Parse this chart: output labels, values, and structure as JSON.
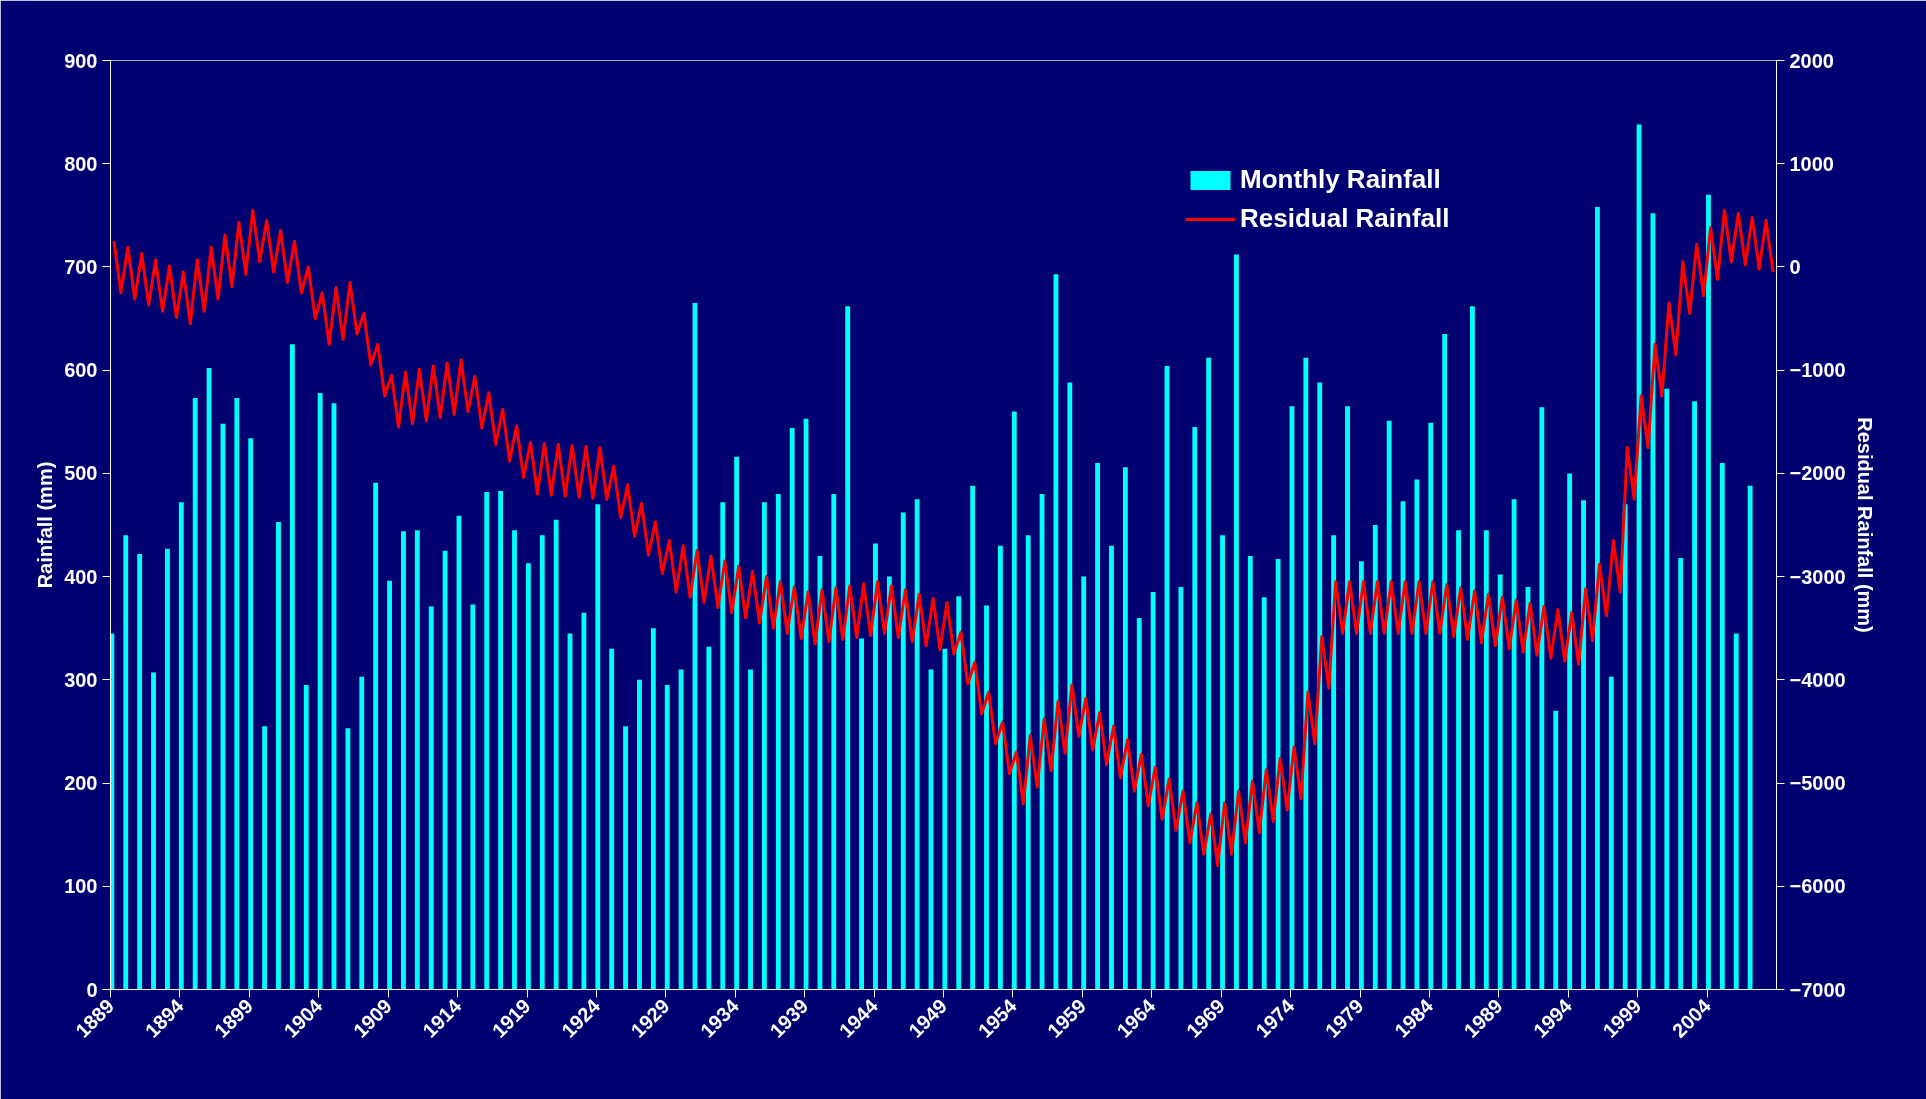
{
  "chart_data": {
    "type": "bar",
    "ylabel": "Rainfall (mm)",
    "y2label": "Residual Rainfall (mm)",
    "xlim": [
      1889,
      2009
    ],
    "xticks": [
      1889,
      1894,
      1899,
      1904,
      1909,
      1914,
      1919,
      1924,
      1929,
      1934,
      1939,
      1944,
      1949,
      1954,
      1959,
      1964,
      1969,
      1974,
      1979,
      1984,
      1989,
      1994,
      1999,
      2004
    ],
    "ylim": [
      0,
      900
    ],
    "yticks": [
      0,
      100,
      200,
      300,
      400,
      500,
      600,
      700,
      800,
      900
    ],
    "y2lim": [
      -7000,
      2000
    ],
    "y2ticks": [
      -7000,
      -6000,
      -5000,
      -4000,
      -3000,
      -2000,
      -1000,
      0,
      1000,
      2000
    ],
    "grid": false,
    "legend": "top right",
    "series": [
      {
        "name": "Monthly Rainfall",
        "color": "#00ffff",
        "x": [
          1889.1,
          1890.1,
          1891.1,
          1892.1,
          1893.1,
          1894.1,
          1895.1,
          1896.1,
          1897.1,
          1898.1,
          1899.1,
          1900.1,
          1901.1,
          1902.1,
          1903.1,
          1904.1,
          1905.1,
          1906.1,
          1907.1,
          1908.1,
          1909.1,
          1910.1,
          1911.1,
          1912.1,
          1913.1,
          1914.1,
          1915.1,
          1916.1,
          1917.1,
          1918.1,
          1919.1,
          1920.1,
          1921.1,
          1922.1,
          1923.1,
          1924.1,
          1925.1,
          1926.1,
          1927.1,
          1928.1,
          1929.1,
          1930.1,
          1931.1,
          1932.1,
          1933.1,
          1934.1,
          1935.1,
          1936.1,
          1937.1,
          1938.1,
          1939.1,
          1940.1,
          1941.1,
          1942.1,
          1943.1,
          1944.1,
          1945.1,
          1946.1,
          1947.1,
          1948.1,
          1949.1,
          1950.1,
          1951.1,
          1952.1,
          1953.1,
          1954.1,
          1955.1,
          1956.1,
          1957.1,
          1958.1,
          1959.1,
          1960.1,
          1961.1,
          1962.1,
          1963.1,
          1964.1,
          1965.1,
          1966.1,
          1967.1,
          1968.1,
          1969.1,
          1970.1,
          1971.1,
          1972.1,
          1973.1,
          1974.1,
          1975.1,
          1976.1,
          1977.1,
          1978.1,
          1979.1,
          1980.1,
          1981.1,
          1982.1,
          1983.1,
          1984.1,
          1985.1,
          1986.1,
          1987.1,
          1988.1,
          1989.1,
          1990.1,
          1991.1,
          1992.1,
          1993.1,
          1994.1,
          1995.1,
          1996.1,
          1997.1,
          1998.1,
          1999.1,
          2000.1,
          2001.1,
          2002.1,
          2003.1,
          2004.1,
          2005.1,
          2006.1,
          2007.1
        ],
        "values": [
          345,
          440,
          422,
          307,
          427,
          472,
          573,
          602,
          548,
          573,
          534,
          255,
          453,
          625,
          295,
          578,
          568,
          253,
          303,
          491,
          396,
          444,
          445,
          371,
          425,
          459,
          373,
          482,
          483,
          445,
          413,
          440,
          455,
          345,
          365,
          470,
          330,
          255,
          300,
          350,
          295,
          310,
          665,
          332,
          472,
          516,
          310,
          472,
          480,
          544,
          553,
          420,
          480,
          662,
          340,
          432,
          400,
          462,
          475,
          310,
          330,
          381,
          488,
          372,
          430,
          560,
          440,
          480,
          693,
          588,
          400,
          510,
          430,
          506,
          360,
          385,
          604,
          390,
          545,
          612,
          440,
          712,
          420,
          380,
          417,
          565,
          612,
          588,
          440,
          565,
          415,
          450,
          551,
          473,
          494,
          549,
          635,
          445,
          662,
          445,
          402,
          475,
          390,
          564,
          270,
          500,
          474,
          758,
          303,
          470,
          838,
          752,
          582,
          418,
          570,
          770,
          510,
          345,
          488
        ]
      },
      {
        "name": "Residual Rainfall",
        "type": "line",
        "axis": "y2",
        "color": "#ff0000",
        "line_style": "solid",
        "marker": "none",
        "x": [
          1889.25,
          1889.75,
          1890.25,
          1890.75,
          1891.25,
          1891.75,
          1892.25,
          1892.75,
          1893.25,
          1893.75,
          1894.25,
          1894.75,
          1895.25,
          1895.75,
          1896.25,
          1896.75,
          1897.25,
          1897.75,
          1898.25,
          1898.75,
          1899.25,
          1899.75,
          1900.25,
          1900.75,
          1901.25,
          1901.75,
          1902.25,
          1902.75,
          1903.25,
          1903.75,
          1904.25,
          1904.75,
          1905.25,
          1905.75,
          1906.25,
          1906.75,
          1907.25,
          1907.75,
          1908.25,
          1908.75,
          1909.25,
          1909.75,
          1910.25,
          1910.75,
          1911.25,
          1911.75,
          1912.25,
          1912.75,
          1913.25,
          1913.75,
          1914.25,
          1914.75,
          1915.25,
          1915.75,
          1916.25,
          1916.75,
          1917.25,
          1917.75,
          1918.25,
          1918.75,
          1919.25,
          1919.75,
          1920.25,
          1920.75,
          1921.25,
          1921.75,
          1922.25,
          1922.75,
          1923.25,
          1923.75,
          1924.25,
          1924.75,
          1925.25,
          1925.75,
          1926.25,
          1926.75,
          1927.25,
          1927.75,
          1928.25,
          1928.75,
          1929.25,
          1929.75,
          1930.25,
          1930.75,
          1931.25,
          1931.75,
          1932.25,
          1932.75,
          1933.25,
          1933.75,
          1934.25,
          1934.75,
          1935.25,
          1935.75,
          1936.25,
          1936.75,
          1937.25,
          1937.75,
          1938.25,
          1938.75,
          1939.25,
          1939.75,
          1940.25,
          1940.75,
          1941.25,
          1941.75,
          1942.25,
          1942.75,
          1943.25,
          1943.75,
          1944.25,
          1944.75,
          1945.25,
          1945.75,
          1946.25,
          1946.75,
          1947.25,
          1947.75,
          1948.25,
          1948.75,
          1949.25,
          1949.75,
          1950.25,
          1950.75,
          1951.25,
          1951.75,
          1952.25,
          1952.75,
          1953.25,
          1953.75,
          1954.25,
          1954.75,
          1955.25,
          1955.75,
          1956.25,
          1956.75,
          1957.25,
          1957.75,
          1958.25,
          1958.75,
          1959.25,
          1959.75,
          1960.25,
          1960.75,
          1961.25,
          1961.75,
          1962.25,
          1962.75,
          1963.25,
          1963.75,
          1964.25,
          1964.75,
          1965.25,
          1965.75,
          1966.25,
          1966.75,
          1967.25,
          1967.75,
          1968.25,
          1968.75,
          1969.25,
          1969.75,
          1970.25,
          1970.75,
          1971.25,
          1971.75,
          1972.25,
          1972.75,
          1973.25,
          1973.75,
          1974.25,
          1974.75,
          1975.25,
          1975.75,
          1976.25,
          1976.75,
          1977.25,
          1977.75,
          1978.25,
          1978.75,
          1979.25,
          1979.75,
          1980.25,
          1980.75,
          1981.25,
          1981.75,
          1982.25,
          1982.75,
          1983.25,
          1983.75,
          1984.25,
          1984.75,
          1985.25,
          1985.75,
          1986.25,
          1986.75,
          1987.25,
          1987.75,
          1988.25,
          1988.75,
          1989.25,
          1989.75,
          1990.25,
          1990.75,
          1991.25,
          1991.75,
          1992.25,
          1992.75,
          1993.25,
          1993.75,
          1994.25,
          1994.75,
          1995.25,
          1995.75,
          1996.25,
          1996.75,
          1997.25,
          1997.75,
          1998.25,
          1998.75,
          1999.25,
          1999.75,
          2000.25,
          2000.75,
          2001.25,
          2001.75,
          2002.25,
          2002.75,
          2003.25,
          2003.75,
          2004.25,
          2004.75,
          2005.25,
          2005.75,
          2006.25,
          2006.75,
          2007.25,
          2007.75,
          2008.25,
          2008.75
        ],
        "values": [
          250,
          -250,
          190,
          -310,
          130,
          -370,
          70,
          -430,
          10,
          -490,
          -50,
          -550,
          70,
          -430,
          190,
          -310,
          310,
          -190,
          430,
          -70,
          550,
          50,
          450,
          -50,
          350,
          -150,
          250,
          -250,
          0,
          -500,
          -250,
          -750,
          -200,
          -700,
          -150,
          -650,
          -450,
          -950,
          -750,
          -1250,
          -1050,
          -1550,
          -1020,
          -1520,
          -990,
          -1490,
          -960,
          -1460,
          -930,
          -1430,
          -900,
          -1400,
          -1060,
          -1560,
          -1220,
          -1720,
          -1380,
          -1880,
          -1540,
          -2040,
          -1700,
          -2200,
          -1710,
          -2210,
          -1720,
          -2220,
          -1730,
          -2230,
          -1740,
          -2240,
          -1750,
          -2250,
          -1930,
          -2430,
          -2110,
          -2610,
          -2290,
          -2790,
          -2470,
          -2970,
          -2650,
          -3150,
          -2700,
          -3200,
          -2750,
          -3250,
          -2800,
          -3300,
          -2850,
          -3350,
          -2900,
          -3400,
          -2950,
          -3450,
          -3000,
          -3500,
          -3050,
          -3550,
          -3100,
          -3600,
          -3150,
          -3650,
          -3130,
          -3630,
          -3110,
          -3610,
          -3090,
          -3590,
          -3070,
          -3570,
          -3050,
          -3550,
          -3090,
          -3590,
          -3130,
          -3630,
          -3170,
          -3670,
          -3210,
          -3710,
          -3250,
          -3750,
          -3540,
          -4040,
          -3830,
          -4330,
          -4120,
          -4620,
          -4410,
          -4910,
          -4700,
          -5200,
          -4540,
          -5040,
          -4380,
          -4880,
          -4210,
          -4710,
          -4050,
          -4550,
          -4180,
          -4680,
          -4320,
          -4820,
          -4450,
          -4950,
          -4580,
          -5080,
          -4720,
          -5220,
          -4850,
          -5350,
          -4960,
          -5460,
          -5080,
          -5580,
          -5190,
          -5690,
          -5300,
          -5800,
          -5190,
          -5690,
          -5080,
          -5580,
          -4980,
          -5480,
          -4870,
          -5370,
          -4760,
          -5260,
          -4650,
          -5150,
          -4120,
          -4620,
          -3580,
          -4080,
          -3050,
          -3550,
          -3050,
          -3550,
          -3050,
          -3550,
          -3050,
          -3550,
          -3050,
          -3550,
          -3050,
          -3550,
          -3050,
          -3550,
          -3050,
          -3550,
          -3080,
          -3580,
          -3110,
          -3610,
          -3140,
          -3640,
          -3170,
          -3670,
          -3200,
          -3700,
          -3230,
          -3730,
          -3260,
          -3760,
          -3290,
          -3790,
          -3320,
          -3820,
          -3350,
          -3850,
          -3120,
          -3620,
          -2880,
          -3380,
          -2650,
          -3150,
          -1750,
          -2250,
          -1250,
          -1750,
          -750,
          -1250,
          -350,
          -850,
          50,
          -450,
          220,
          -280,
          380,
          -120,
          550,
          50,
          520,
          20,
          480,
          -20,
          450,
          -50
        ]
      }
    ]
  }
}
